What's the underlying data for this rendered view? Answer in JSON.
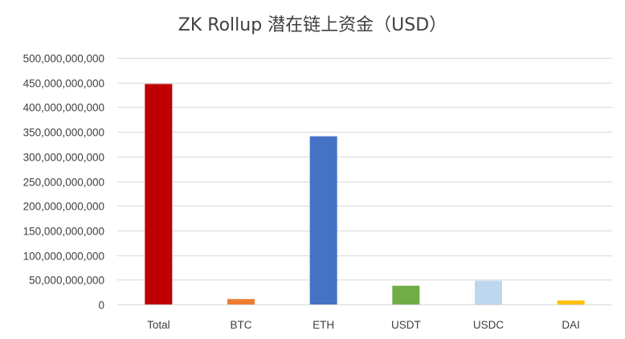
{
  "chart_data": {
    "type": "bar",
    "title": "ZK Rollup 潜在链上资金（USD）",
    "xlabel": "",
    "ylabel": "",
    "categories": [
      "Total",
      "BTC",
      "ETH",
      "USDT",
      "USDC",
      "DAI"
    ],
    "values": [
      447000000000,
      11000000000,
      341000000000,
      38000000000,
      48000000000,
      8000000000
    ],
    "colors": [
      "#c00000",
      "#ed7d31",
      "#4472c4",
      "#70ad47",
      "#bdd7ee",
      "#ffc000"
    ],
    "ylim": [
      0,
      500000000000
    ],
    "y_ticks": [
      0,
      50000000000,
      100000000000,
      150000000000,
      200000000000,
      250000000000,
      300000000000,
      350000000000,
      400000000000,
      450000000000,
      500000000000
    ],
    "y_tick_labels": [
      "0",
      "50,000,000,000",
      "100,000,000,000",
      "150,000,000,000",
      "200,000,000,000",
      "250,000,000,000",
      "300,000,000,000",
      "350,000,000,000",
      "400,000,000,000",
      "450,000,000,000",
      "500,000,000,000"
    ],
    "grid": true,
    "legend": "none"
  }
}
